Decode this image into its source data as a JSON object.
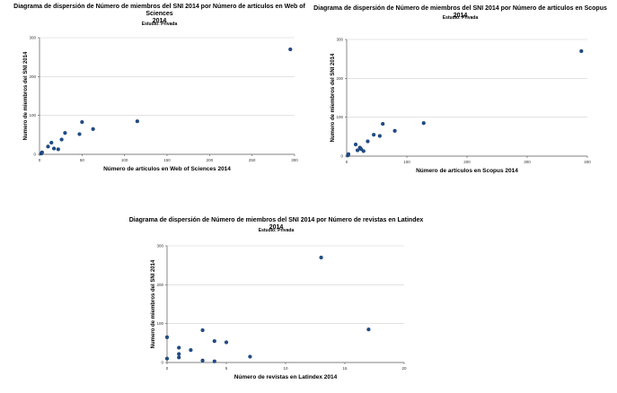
{
  "chart_data": [
    {
      "type": "scatter",
      "title": "Diagrama de dispersión de Número de miembros del SNI 2014 por Número de artículos en Web of Sciences\n2014",
      "subtitle": "Estudio: Privada",
      "xlabel": "Número de artículos en Web of Sciences 2014",
      "ylabel": "Numero de miembros del SNI 2014",
      "xlim": [
        0,
        300
      ],
      "ylim": [
        0,
        300
      ],
      "xticks": [
        0,
        50,
        100,
        150,
        200,
        250,
        300
      ],
      "yticks": [
        0,
        100,
        200,
        300
      ],
      "grid": "horizontal",
      "marker_color": "#1f4e8c",
      "x": [
        2,
        3,
        10,
        14,
        17,
        22,
        26,
        30,
        47,
        50,
        63,
        115,
        295
      ],
      "y": [
        2,
        5,
        20,
        30,
        15,
        13,
        38,
        55,
        52,
        83,
        65,
        85,
        270
      ]
    },
    {
      "type": "scatter",
      "title": "Diagrama de dispersión de Número de miembros del SNI 2014 por Número de artículos en Scopus 2014",
      "subtitle": "Estudio: Privada",
      "xlabel": "Número de artículos en Scopus 2014",
      "ylabel": "Numero de miembros del SNI 2014",
      "xlim": [
        0,
        400
      ],
      "ylim": [
        0,
        300
      ],
      "xticks": [
        0,
        100,
        200,
        300,
        400
      ],
      "yticks": [
        0,
        100,
        200,
        300
      ],
      "grid": "horizontal",
      "marker_color": "#1f4e8c",
      "x": [
        2,
        3,
        15,
        18,
        22,
        24,
        28,
        35,
        45,
        55,
        60,
        80,
        128,
        390
      ],
      "y": [
        2,
        5,
        30,
        15,
        22,
        18,
        13,
        38,
        55,
        52,
        83,
        65,
        85,
        270
      ]
    },
    {
      "type": "scatter",
      "title": "Diagrama de dispersión de Número de miembros del SNI 2014 por Número de revistas en Latindex 2014",
      "subtitle": "Estudio: Privada",
      "xlabel": "Número de revistas en Latindex 2014",
      "ylabel": "Numero de miembros del SNI 2014",
      "xlim": [
        0,
        20
      ],
      "ylim": [
        0,
        300
      ],
      "xticks": [
        0,
        5,
        10,
        15,
        20
      ],
      "yticks": [
        0,
        100,
        200,
        300
      ],
      "grid": "horizontal",
      "marker_color": "#1f4e8c",
      "x": [
        0,
        0,
        1,
        1,
        1,
        2,
        3,
        3,
        4,
        4,
        5,
        7,
        13,
        17
      ],
      "y": [
        65,
        10,
        38,
        22,
        13,
        32,
        83,
        5,
        55,
        3,
        52,
        15,
        270,
        85
      ]
    }
  ]
}
